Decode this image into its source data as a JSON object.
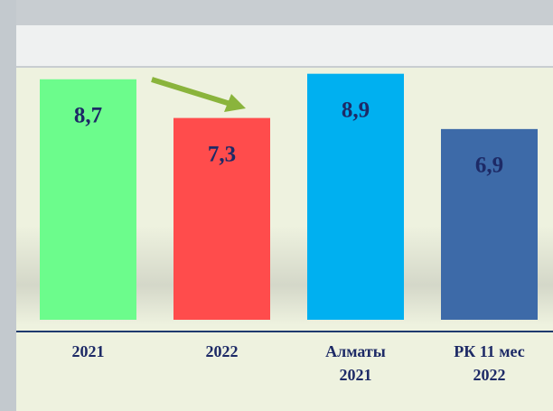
{
  "chart_data": {
    "type": "bar",
    "categories": [
      "2021",
      "2022",
      "Алматы 2021",
      "РК 11 мес 2022"
    ],
    "values": [
      8.7,
      7.3,
      8.9,
      6.9
    ],
    "value_labels": [
      "8,7",
      "7,3",
      "8,9",
      "6,9"
    ],
    "colors": [
      "#6cfc8c",
      "#ff4c4c",
      "#00b0f0",
      "#3d6aa8"
    ]
  }
}
